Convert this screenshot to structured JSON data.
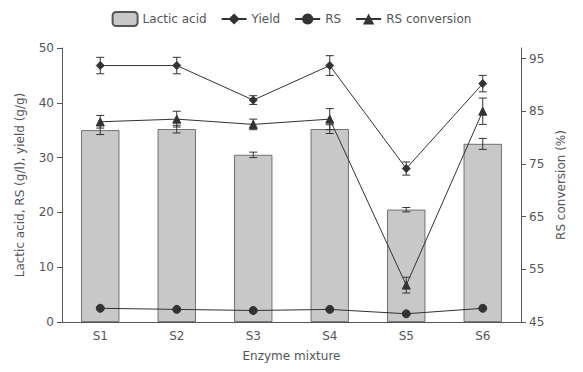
{
  "chart_data": {
    "type": "bar",
    "xlabel": "Enzyme mixture",
    "ylabel": "Lactic acid, RS (g/l), yield (g/g)",
    "y2label": "RS conversion (%)",
    "categories": [
      "S1",
      "S2",
      "S3",
      "S4",
      "S5",
      "S6"
    ],
    "series": [
      {
        "name": "Lactic acid",
        "type": "bar",
        "color": "#c8c8c8",
        "values": [
          35.0,
          35.2,
          30.5,
          35.2,
          20.5,
          32.5
        ],
        "errors": [
          0.8,
          0.7,
          0.5,
          0.8,
          0.4,
          1.0
        ]
      },
      {
        "name": "Yield",
        "type": "line",
        "color": "#333333",
        "marker": "diamond",
        "values": [
          46.8,
          46.8,
          40.5,
          46.8,
          28.0,
          43.5
        ],
        "errors": [
          1.5,
          1.5,
          0.8,
          1.8,
          1.2,
          1.5
        ]
      },
      {
        "name": "RS",
        "type": "line",
        "color": "#333333",
        "marker": "circle",
        "values": [
          2.5,
          2.3,
          2.1,
          2.3,
          1.5,
          2.5
        ],
        "errors": [
          0.2,
          0.15,
          0.1,
          0.1,
          0.1,
          0.1
        ]
      },
      {
        "name": "RS conversion",
        "type": "line",
        "color": "#333333",
        "marker": "triangle",
        "axis": "y2",
        "values": [
          83.0,
          83.5,
          82.5,
          83.5,
          52.0,
          85.0
        ],
        "errors": [
          1.2,
          1.5,
          1.0,
          2.0,
          1.5,
          2.5
        ]
      }
    ],
    "ylim": [
      0,
      50
    ],
    "yticks": [
      0,
      10,
      20,
      30,
      40,
      50
    ],
    "y2lim": [
      45,
      97
    ],
    "y2ticks": [
      45,
      55,
      65,
      75,
      85,
      95
    ],
    "grid": false,
    "legend": "top"
  }
}
